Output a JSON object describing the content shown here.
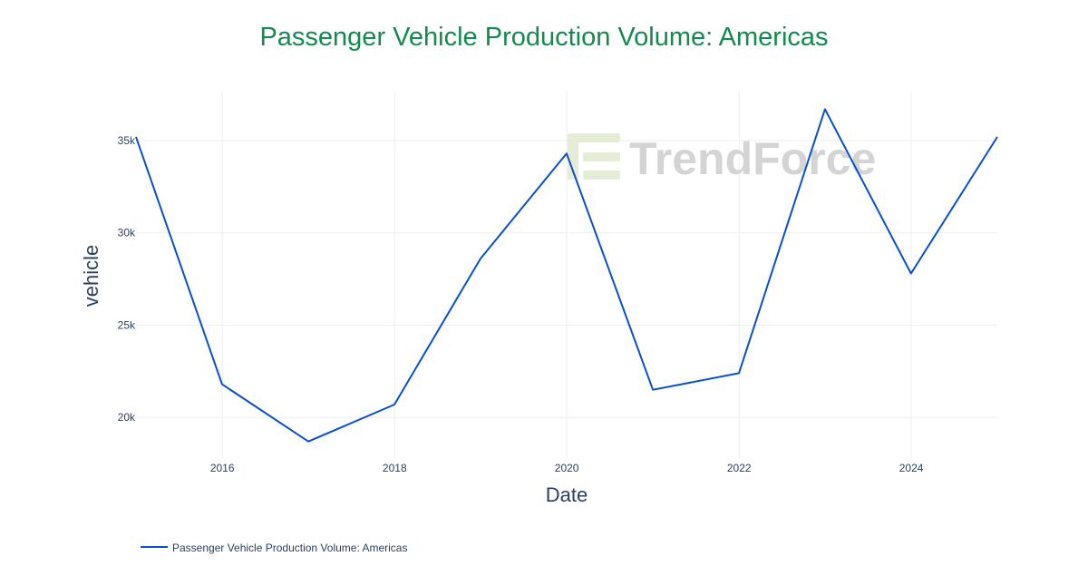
{
  "colors": {
    "title": "#148a4f",
    "series": "#0b4fd0",
    "watermark": "#d0d0d0",
    "watermark_accent": "#e4ecd2"
  },
  "watermark": {
    "text": "TrendForce"
  },
  "chart_data": {
    "type": "line",
    "title": "Passenger Vehicle Production Volume: Americas",
    "xlabel": "Date",
    "ylabel": "vehicle",
    "x_ticks": [
      "2016",
      "2018",
      "2020",
      "2022",
      "2024"
    ],
    "y_ticks": [
      {
        "value": 20000,
        "label": "20k"
      },
      {
        "value": 25000,
        "label": "25k"
      },
      {
        "value": 30000,
        "label": "30k"
      },
      {
        "value": 35000,
        "label": "35k"
      }
    ],
    "xlim": [
      "2014-12-31",
      "2024-12-31"
    ],
    "ylim": [
      17800,
      37700
    ],
    "grid": true,
    "legend_position": "bottom-left",
    "series": [
      {
        "name": "Passenger Vehicle Production Volume: Americas",
        "x": [
          "2014-12-31",
          "2015-12-31",
          "2016-12-31",
          "2017-12-31",
          "2018-12-31",
          "2019-12-31",
          "2020-12-31",
          "2021-12-31",
          "2022-12-31",
          "2023-12-31",
          "2024-12-31"
        ],
        "y": [
          35200,
          21800,
          18700,
          20700,
          28600,
          34300,
          21500,
          22400,
          36700,
          27800,
          35200
        ]
      }
    ]
  }
}
